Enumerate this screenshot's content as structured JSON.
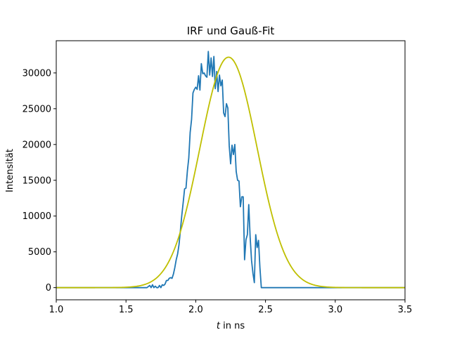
{
  "chart_data": {
    "type": "line",
    "title": "IRF und Gauß-Fit",
    "xlabel_italic": "t",
    "xlabel_rest": " in ns",
    "ylabel": "Intensität",
    "xlim": [
      1.0,
      3.5
    ],
    "ylim": [
      -1700,
      34500
    ],
    "xticks": [
      1.0,
      1.5,
      2.0,
      2.5,
      3.0,
      3.5
    ],
    "xtick_labels": [
      "1.0",
      "1.5",
      "2.0",
      "2.5",
      "3.0",
      "3.5"
    ],
    "yticks": [
      0,
      5000,
      10000,
      15000,
      20000,
      25000,
      30000
    ],
    "ytick_labels": [
      "0",
      "5000",
      "10000",
      "15000",
      "20000",
      "25000",
      "30000"
    ],
    "grid": false,
    "series": [
      {
        "color": "#1f77b4",
        "x": [
          1.0,
          1.65,
          1.67,
          1.68,
          1.69,
          1.7,
          1.71,
          1.72,
          1.73,
          1.74,
          1.75,
          1.76,
          1.77,
          1.78,
          1.79,
          1.8,
          1.81,
          1.82,
          1.83,
          1.84,
          1.85,
          1.86,
          1.87,
          1.88,
          1.89,
          1.9,
          1.91,
          1.92,
          1.93,
          1.94,
          1.95,
          1.96,
          1.97,
          1.98,
          1.99,
          2.0,
          2.01,
          2.02,
          2.03,
          2.04,
          2.05,
          2.06,
          2.07,
          2.08,
          2.09,
          2.1,
          2.11,
          2.12,
          2.13,
          2.14,
          2.15,
          2.16,
          2.17,
          2.18,
          2.19,
          2.2,
          2.21,
          2.22,
          2.23,
          2.24,
          2.25,
          2.26,
          2.27,
          2.28,
          2.29,
          2.3,
          2.31,
          2.32,
          2.33,
          2.34,
          2.35,
          2.36,
          2.37,
          2.38,
          2.39,
          2.4,
          2.41,
          2.42,
          2.43,
          2.44,
          2.45,
          2.46,
          2.47,
          2.48,
          2.49,
          2.5,
          2.51,
          2.52,
          2.53,
          2.54,
          2.55,
          2.56,
          2.57,
          2.58,
          2.59,
          2.6,
          2.61,
          2.62,
          2.63,
          2.64,
          2.65,
          2.66,
          2.67,
          2.68,
          2.69,
          2.7,
          2.71,
          2.72,
          2.73,
          2.74,
          2.75,
          3.5
        ],
        "y": [
          0,
          0,
          300,
          0,
          400,
          0,
          200,
          0,
          0,
          300,
          0,
          400,
          300,
          500,
          1000,
          1000,
          1300,
          1400,
          1300,
          1900,
          2800,
          3900,
          4700,
          6000,
          8000,
          10100,
          11900,
          13800,
          13900,
          16300,
          18100,
          21700,
          23500,
          27200,
          27700,
          28000,
          27700,
          29600,
          27600,
          31300,
          29900,
          30000,
          29600,
          29400,
          33000,
          29700,
          32100,
          29500,
          32300,
          27800,
          30200,
          27400,
          29700,
          28200,
          29000,
          24400,
          23900,
          25700,
          25100,
          19800,
          17300,
          19900,
          18600,
          20000,
          16200,
          15000,
          14900,
          11300,
          12700,
          12700,
          3900,
          6700,
          7400,
          11600,
          7000,
          3800,
          2000,
          700,
          7400,
          5600,
          6600,
          2800,
          0,
          0,
          0,
          0,
          0,
          0,
          0,
          0,
          0,
          0,
          0,
          0,
          0,
          0,
          0,
          0,
          0,
          0,
          0,
          0,
          0,
          0,
          0,
          0,
          0,
          0,
          0,
          0,
          0,
          0
        ]
      },
      {
        "color": "#bfbf00",
        "gauss": {
          "amplitude": 32200,
          "center": 2.235,
          "sigma": 0.205
        }
      }
    ]
  }
}
